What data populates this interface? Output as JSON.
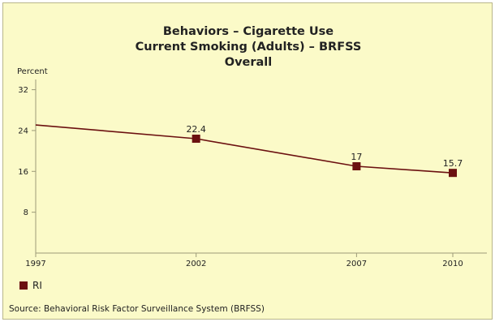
{
  "chart_data": {
    "type": "line",
    "title_lines": [
      "Behaviors – Cigarette Use",
      "Current Smoking (Adults) – BRFSS",
      "Overall"
    ],
    "ylabel": "Percent",
    "xlabel": "",
    "x": [
      1997,
      2002,
      2007,
      2010
    ],
    "x_tick_labels": [
      "1997",
      "2002",
      "2007",
      "2010"
    ],
    "yticks": [
      8,
      16,
      24,
      32
    ],
    "ylim": [
      0,
      34
    ],
    "series": [
      {
        "name": "RI",
        "values": [
          25.1,
          22.4,
          17,
          15.7
        ],
        "labels": [
          "",
          "22.4",
          "17",
          "15.7"
        ],
        "color": "#6b1010"
      }
    ],
    "legend_position": "bottom-left",
    "grid": false
  },
  "source": "Source: Behavioral Risk Factor Surveillance System (BRFSS)"
}
